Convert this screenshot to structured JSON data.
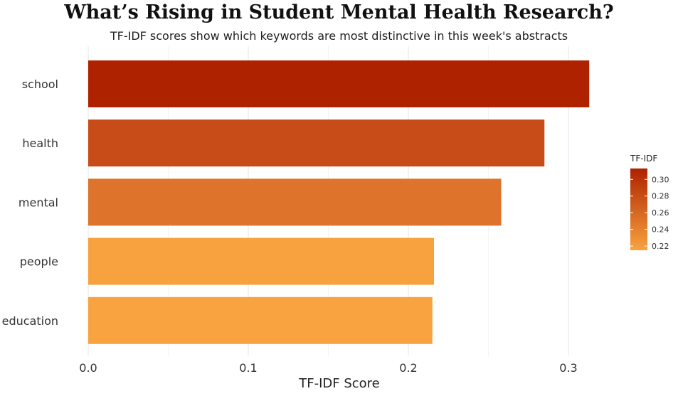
{
  "chart_data": {
    "type": "bar",
    "orientation": "horizontal",
    "title": "What’s Rising in Student Mental Health Research?",
    "subtitle": "TF-IDF scores show which keywords are most distinctive in this week's abstracts",
    "xlabel": "TF-IDF Score",
    "ylabel": "",
    "categories": [
      "school",
      "health",
      "mental",
      "people",
      "education"
    ],
    "values": [
      0.313,
      0.285,
      0.258,
      0.216,
      0.215
    ],
    "xlim": [
      0,
      0.33
    ],
    "x_ticks": [
      "0.0",
      "0.1",
      "0.2",
      "0.3"
    ],
    "x_tick_values": [
      0,
      0.1,
      0.2,
      0.3
    ],
    "grid": true,
    "legend": {
      "title": "TF-IDF",
      "placement": "right",
      "ticks": [
        "0.22",
        "0.24",
        "0.26",
        "0.28",
        "0.30"
      ],
      "tick_values": [
        0.22,
        0.24,
        0.26,
        0.28,
        0.3
      ],
      "range": [
        0.215,
        0.313
      ],
      "color_low": "#f8a33f",
      "color_high": "#ae2200"
    }
  }
}
